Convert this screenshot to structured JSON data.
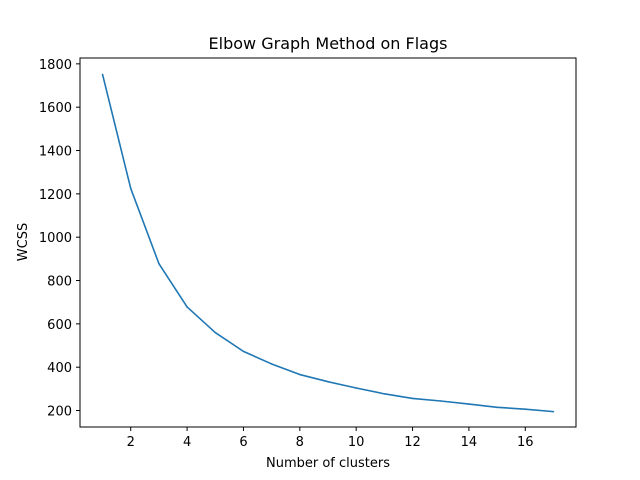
{
  "chart_data": {
    "type": "line",
    "title": "Elbow Graph Method on Flags",
    "xlabel": "Number of clusters",
    "ylabel": "WCSS",
    "xlim": [
      0.2,
      17.8
    ],
    "ylim": [
      124,
      1827
    ],
    "xticks": [
      2,
      4,
      6,
      8,
      10,
      12,
      14,
      16
    ],
    "yticks": [
      200,
      400,
      600,
      800,
      1000,
      1200,
      1400,
      1600,
      1800
    ],
    "grid": false,
    "legend": "none",
    "series": [
      {
        "color": "#1f77b4",
        "x": [
          1,
          2,
          3,
          4,
          5,
          6,
          7,
          8,
          9,
          10,
          11,
          12,
          13,
          14,
          15,
          16,
          17
        ],
        "values": [
          1751,
          1225,
          878,
          678,
          560,
          473,
          415,
          366,
          333,
          304,
          277,
          256,
          244,
          230,
          215,
          206,
          195
        ]
      }
    ]
  }
}
